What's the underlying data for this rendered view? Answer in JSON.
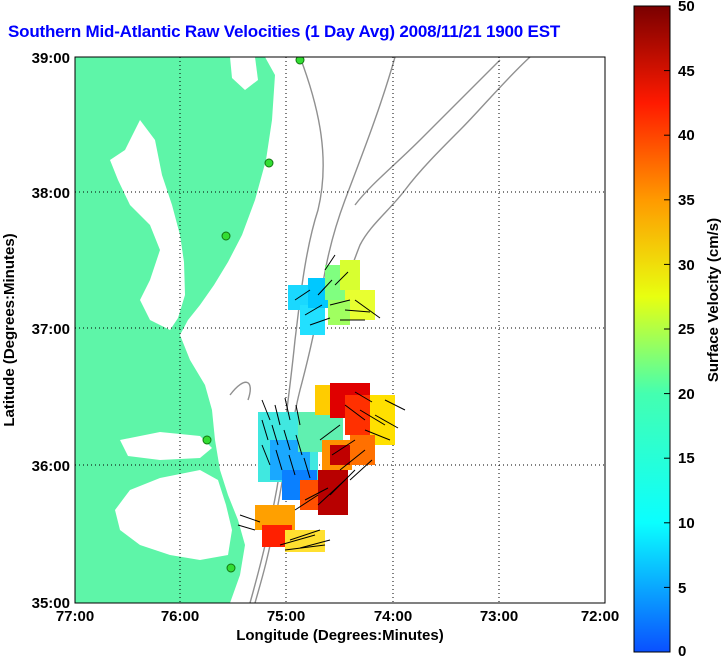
{
  "title": "Southern Mid-Atlantic Raw Velocities (1 Day Avg) 2008/11/21 1900 EST",
  "map": {
    "xlabel": "Longitude (Degrees:Minutes)",
    "ylabel": "Latitude (Degrees:Minutes)",
    "x_ticks": [
      "77:00",
      "76:00",
      "75:00",
      "74:00",
      "73:00",
      "72:00"
    ],
    "y_ticks": [
      "39:00",
      "38:00",
      "37:00",
      "36:00",
      "35:00"
    ],
    "land_color": "#5ef5a8",
    "bathymetry_color": "#909090",
    "station_color": "#33dd33"
  },
  "colorbar": {
    "label": "Surface Velocity (cm/s)",
    "ticks": [
      "50",
      "45",
      "40",
      "35",
      "30",
      "25",
      "20",
      "15",
      "10",
      "5",
      "0"
    ],
    "min": 0,
    "max": 50
  }
}
